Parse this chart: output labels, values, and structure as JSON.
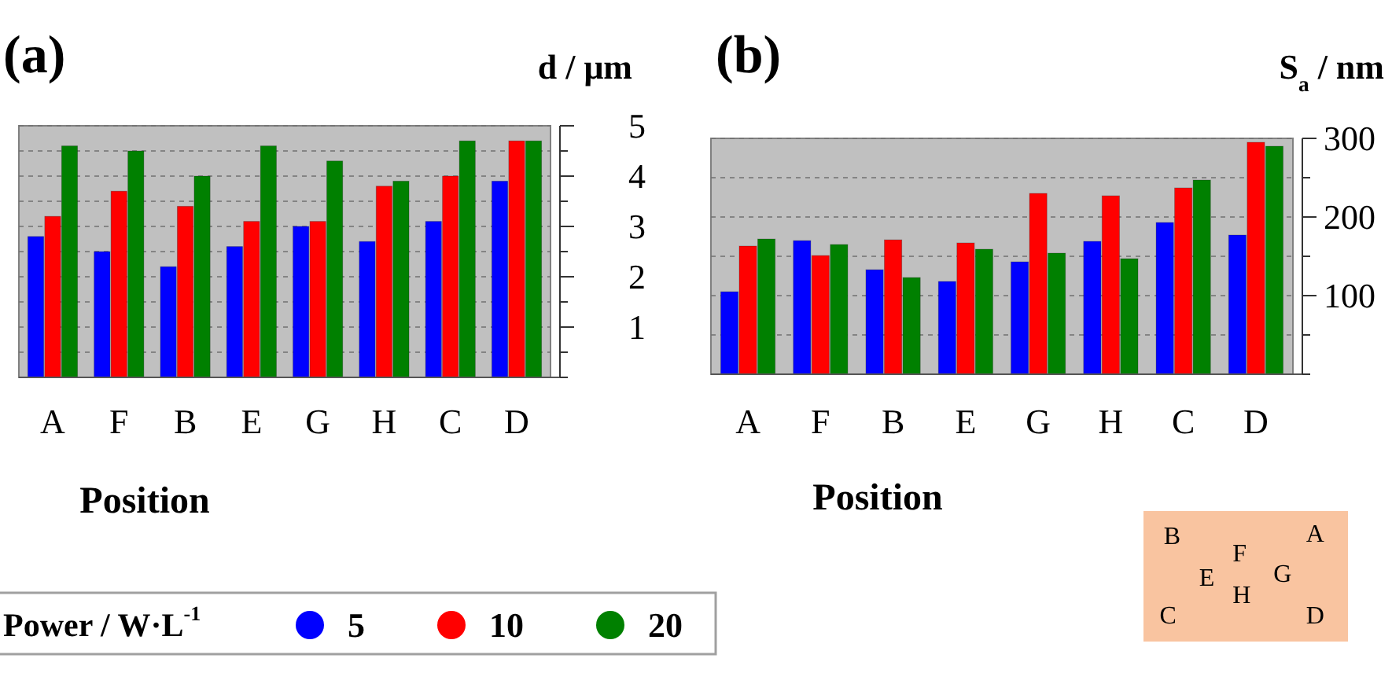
{
  "chart_data": [
    {
      "type": "bar",
      "title": "(a)",
      "ylabel": "d / μm",
      "xlabel": "Position",
      "legend_title": "Power / W·L$^{-1}$",
      "categories": [
        "A",
        "F",
        "B",
        "E",
        "G",
        "H",
        "C",
        "D"
      ],
      "series": [
        {
          "name": "5",
          "color": "#0000ff",
          "values": [
            2.8,
            2.5,
            2.2,
            2.6,
            3.0,
            2.7,
            3.1,
            3.9
          ]
        },
        {
          "name": "10",
          "color": "#ff0000",
          "values": [
            3.2,
            3.7,
            3.4,
            3.1,
            3.1,
            3.8,
            4.0,
            4.7
          ]
        },
        {
          "name": "20",
          "color": "#008000",
          "values": [
            4.6,
            4.5,
            4.0,
            4.6,
            4.3,
            3.9,
            4.7,
            4.7
          ]
        }
      ],
      "ylim": [
        0,
        5
      ],
      "yticks": [
        {
          "value": 0,
          "label": null
        },
        {
          "value": 0.5,
          "label": null
        },
        1,
        {
          "value": 1.5,
          "label": null
        },
        2,
        {
          "value": 2.5,
          "label": null
        },
        3,
        {
          "value": 3.5,
          "label": null
        },
        4,
        {
          "value": 4.5,
          "label": null
        },
        5
      ],
      "grid": "y",
      "legend": "bottom"
    },
    {
      "type": "bar",
      "title": "(b)",
      "ylabel": "S$_{a}$ / nm",
      "xlabel": "Position",
      "categories": [
        "A",
        "F",
        "B",
        "E",
        "G",
        "H",
        "C",
        "D"
      ],
      "series": [
        {
          "color": "#0000ff",
          "values": [
            105,
            170,
            133,
            118,
            143,
            169,
            193,
            177
          ]
        },
        {
          "color": "#ff0000",
          "values": [
            163,
            151,
            171,
            167,
            230,
            227,
            237,
            295
          ]
        },
        {
          "color": "#008000",
          "values": [
            172,
            165,
            123,
            159,
            154,
            147,
            247,
            290
          ]
        }
      ],
      "ylim": [
        0,
        300
      ],
      "yticks": [
        {
          "value": 0,
          "label": null
        },
        {
          "value": 50,
          "label": null
        },
        100,
        {
          "value": 150,
          "label": null
        },
        200,
        {
          "value": 250,
          "label": null
        },
        300
      ],
      "grid": "y"
    },
    {
      "type": "other",
      "annotations": [
        "B",
        "F",
        "A",
        "E",
        "H",
        "G",
        "C",
        "D"
      ]
    }
  ]
}
